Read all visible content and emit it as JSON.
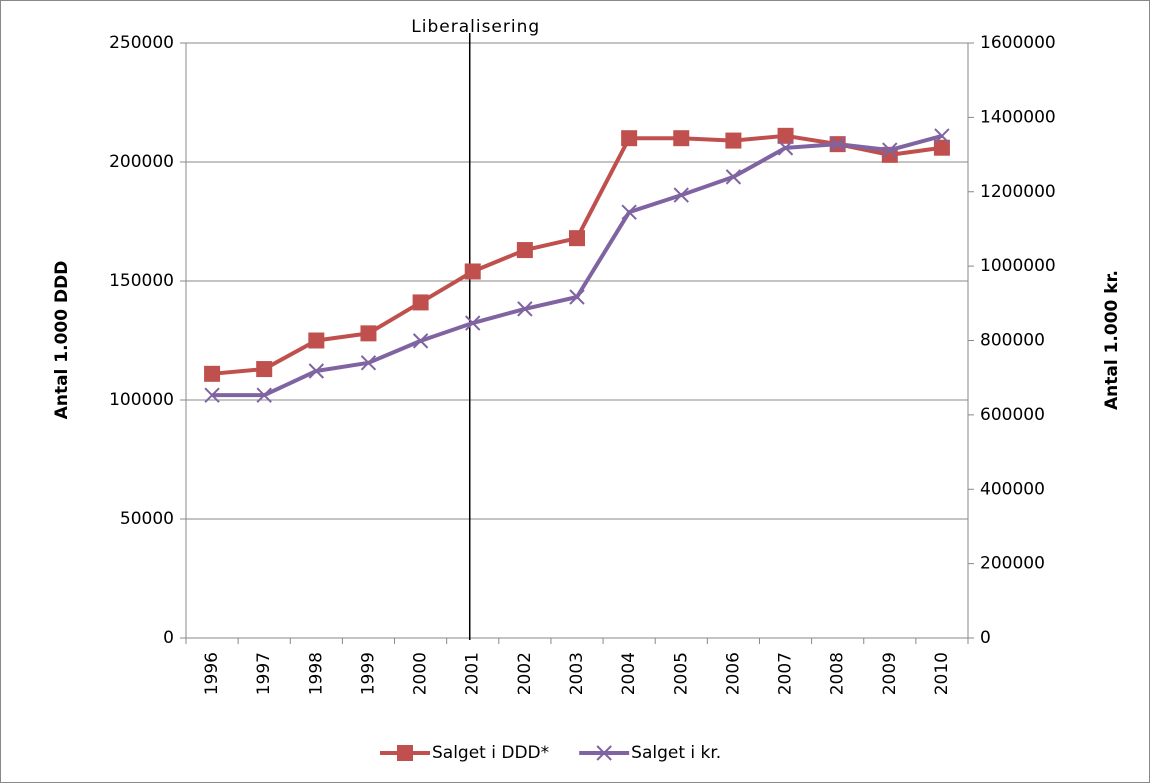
{
  "chart_data": {
    "type": "line",
    "annotation": {
      "text": "Liberalisering",
      "x": "2001"
    },
    "ylabel": "Antal 1.000 DDD",
    "y2label": "Antal 1.000 kr.",
    "categories": [
      "1996",
      "1997",
      "1998",
      "1999",
      "2000",
      "2001",
      "2002",
      "2003",
      "2004",
      "2005",
      "2006",
      "2007",
      "2008",
      "2009",
      "2010"
    ],
    "series": [
      {
        "name": "Salget i DDD*",
        "color": "#C0504D",
        "marker": "square",
        "axis": "y",
        "values": [
          111000,
          113000,
          125000,
          128000,
          141000,
          154000,
          163000,
          168000,
          210000,
          210000,
          209000,
          211000,
          207500,
          203000,
          206000
        ]
      },
      {
        "name": "Salget i kr.",
        "color": "#8064A2",
        "marker": "x",
        "axis": "y2",
        "values": [
          653000,
          653000,
          718000,
          740000,
          799000,
          847000,
          885000,
          917000,
          1145000,
          1191000,
          1240000,
          1318000,
          1328000,
          1312000,
          1350000
        ]
      }
    ],
    "ylim": [
      0,
      250000
    ],
    "yticks": [
      0,
      50000,
      100000,
      150000,
      200000,
      250000
    ],
    "y2lim": [
      0,
      1600000
    ],
    "y2ticks": [
      0,
      200000,
      400000,
      600000,
      800000,
      1000000,
      1200000,
      1400000,
      1600000
    ],
    "grid": true,
    "legend": "bottom"
  }
}
